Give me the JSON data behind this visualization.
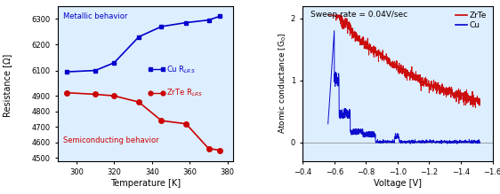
{
  "left_top": {
    "x": [
      295,
      310,
      320,
      333,
      345,
      358,
      370,
      376
    ],
    "y": [
      6095,
      6100,
      6130,
      6230,
      6270,
      6285,
      6295,
      6310
    ],
    "color": "#0000cc",
    "marker": "s",
    "label": "Cu R$_{LRS}$",
    "annotation": "Metallic behavior",
    "ann_color": "#0000cc",
    "ylim": [
      6050,
      6350
    ],
    "yticks": [
      6100,
      6200,
      6300
    ]
  },
  "left_bottom": {
    "x": [
      295,
      310,
      320,
      333,
      345,
      358,
      370,
      376
    ],
    "y": [
      4920,
      4910,
      4900,
      4860,
      4740,
      4720,
      4560,
      4550
    ],
    "color": "#cc0000",
    "marker": "o",
    "label": "ZrTe R$_{LRS}$",
    "annotation": "Semiconducting behavior",
    "ann_color": "#cc0000",
    "ylim": [
      4480,
      4980
    ],
    "yticks": [
      4500,
      4600,
      4700,
      4800,
      4900
    ]
  },
  "left_xlabel": "Temperature [K]",
  "left_ylabel": "Resistance [Ω]",
  "left_xlim": [
    290,
    383
  ],
  "left_xticks": [
    300,
    320,
    340,
    360,
    380
  ],
  "right": {
    "annotation": "Sweep rate = 0.04V/sec",
    "zrte_label": "ZrTe",
    "cu_label": "Cu",
    "zrte_color": "#cc0000",
    "cu_color": "#0000cc",
    "xlabel": "Voltage [V]",
    "ylabel": "Atomic conductance [G$_0$]",
    "xlim": [
      -0.4,
      -1.6
    ],
    "ylim": [
      -0.3,
      2.2
    ],
    "yticks": [
      0,
      1,
      2
    ],
    "xticks": [
      -0.4,
      -0.6,
      -0.8,
      -1.0,
      -1.2,
      -1.4,
      -1.6
    ]
  },
  "background_color": "#ddeeff"
}
